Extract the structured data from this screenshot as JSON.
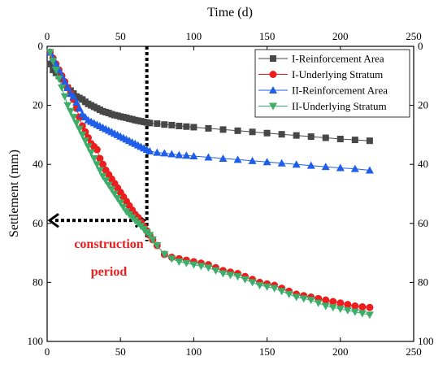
{
  "chart_data": {
    "type": "scatter",
    "xlabel_top": "Time (d)",
    "ylabel": "Settlement (mm)",
    "xlim": [
      0,
      250
    ],
    "ylim": [
      0,
      100
    ],
    "y_inverted": true,
    "x_ticks": [
      0,
      50,
      100,
      150,
      200,
      250
    ],
    "y_ticks": [
      0,
      20,
      40,
      60,
      80,
      100
    ],
    "grid": false,
    "legend_position": "top-right",
    "annotations": {
      "line1": "construction",
      "line2": "period",
      "construction_end_day": 68,
      "arrow_level_mm": 59
    },
    "series": [
      {
        "name": "I-Reinforcement Area",
        "color": "#474747",
        "marker": "square",
        "x": [
          2,
          4,
          6,
          8,
          10,
          12,
          14,
          16,
          18,
          20,
          22,
          24,
          26,
          28,
          30,
          32,
          34,
          36,
          38,
          40,
          42,
          44,
          46,
          48,
          50,
          52,
          54,
          56,
          58,
          60,
          62,
          64,
          66,
          68,
          70,
          75,
          80,
          85,
          90,
          95,
          100,
          110,
          120,
          130,
          140,
          150,
          160,
          170,
          180,
          190,
          200,
          210,
          220
        ],
        "y": [
          6,
          8,
          9,
          10,
          11,
          13,
          14,
          15,
          16,
          17,
          17.5,
          18,
          18.8,
          19.5,
          20,
          20.5,
          21,
          21.5,
          22,
          22.3,
          22.6,
          23,
          23.3,
          23.5,
          23.8,
          24,
          24.2,
          24.5,
          24.7,
          25,
          25.2,
          25.4,
          25.6,
          25.8,
          26,
          26.2,
          26.5,
          26.7,
          27,
          27.2,
          27.4,
          27.8,
          28.2,
          28.6,
          29,
          29.4,
          29.8,
          30.2,
          30.6,
          31,
          31.4,
          31.7,
          32
        ]
      },
      {
        "name": "I-Underlying Stratum",
        "color": "#ee1c1c",
        "marker": "circle",
        "x": [
          2,
          4,
          6,
          8,
          10,
          12,
          14,
          16,
          18,
          20,
          22,
          24,
          26,
          28,
          30,
          32,
          34,
          36,
          38,
          40,
          42,
          44,
          46,
          48,
          50,
          52,
          54,
          56,
          58,
          60,
          62,
          64,
          66,
          68,
          70,
          72,
          75,
          80,
          85,
          90,
          95,
          100,
          105,
          110,
          115,
          120,
          125,
          130,
          135,
          140,
          145,
          150,
          155,
          160,
          165,
          170,
          175,
          180,
          185,
          190,
          195,
          200,
          205,
          210,
          215,
          220
        ],
        "y": [
          2,
          4,
          6,
          8,
          10,
          12,
          14,
          16,
          18,
          21,
          24,
          27,
          29,
          31,
          33,
          34,
          35,
          38,
          40,
          42,
          43.5,
          45,
          46.5,
          48,
          49.5,
          51,
          52.5,
          54,
          55.5,
          57,
          58,
          59.5,
          61,
          62.5,
          64,
          65.5,
          67.5,
          70.5,
          71.5,
          72,
          72.5,
          73,
          73.5,
          74,
          75,
          76,
          76.5,
          77,
          78,
          79,
          80,
          80.5,
          81,
          82,
          83,
          84,
          84.5,
          85,
          85.5,
          86,
          86.5,
          87,
          87.5,
          88,
          88.3,
          88.5
        ]
      },
      {
        "name": "II-Reinforcement Area",
        "color": "#1f5ee8",
        "marker": "triangle-up",
        "x": [
          2,
          4,
          6,
          8,
          10,
          12,
          14,
          16,
          18,
          20,
          22,
          24,
          26,
          28,
          30,
          32,
          34,
          36,
          38,
          40,
          42,
          44,
          46,
          48,
          50,
          52,
          54,
          56,
          58,
          60,
          62,
          64,
          66,
          68,
          70,
          75,
          80,
          85,
          90,
          95,
          100,
          110,
          120,
          130,
          140,
          150,
          160,
          170,
          180,
          190,
          200,
          210,
          220
        ],
        "y": [
          2,
          4,
          6,
          8,
          10,
          12,
          14,
          16,
          17,
          19,
          21,
          23,
          24,
          25,
          25.5,
          26,
          26.5,
          27,
          27.5,
          28,
          28.5,
          29,
          29.5,
          30,
          30.5,
          31,
          31.5,
          32,
          32.5,
          33,
          33.5,
          34,
          34.5,
          35,
          35.5,
          36,
          36.2,
          36.5,
          36.8,
          37,
          37.2,
          37.6,
          38,
          38.4,
          38.8,
          39.2,
          39.6,
          40,
          40.4,
          40.8,
          41.2,
          41.5,
          42
        ]
      },
      {
        "name": "II-Underlying Stratum",
        "color": "#3cae6a",
        "marker": "triangle-down",
        "x": [
          2,
          4,
          6,
          8,
          10,
          12,
          14,
          16,
          18,
          20,
          22,
          24,
          26,
          28,
          30,
          32,
          34,
          36,
          38,
          40,
          42,
          44,
          46,
          48,
          50,
          52,
          54,
          56,
          58,
          60,
          62,
          64,
          66,
          68,
          70,
          72,
          75,
          80,
          85,
          90,
          95,
          100,
          105,
          110,
          115,
          120,
          125,
          130,
          135,
          140,
          145,
          150,
          155,
          160,
          165,
          170,
          175,
          180,
          185,
          190,
          195,
          200,
          205,
          210,
          215,
          220
        ],
        "y": [
          2,
          5,
          8,
          11,
          14,
          17,
          20,
          22,
          24,
          26,
          28,
          30,
          32,
          34,
          36,
          38,
          40,
          42,
          44,
          45.5,
          47,
          48.5,
          50,
          51.5,
          53,
          54.5,
          56,
          57,
          58,
          59,
          60,
          61,
          62,
          63,
          64,
          65.5,
          67.5,
          70.5,
          72,
          73,
          73.5,
          74,
          74.5,
          75,
          76,
          77,
          77.5,
          78,
          79,
          80,
          81,
          81.5,
          82,
          83,
          84,
          85,
          85.5,
          86,
          87,
          88,
          88.5,
          89,
          89.5,
          90,
          90.5,
          91
        ]
      }
    ]
  }
}
